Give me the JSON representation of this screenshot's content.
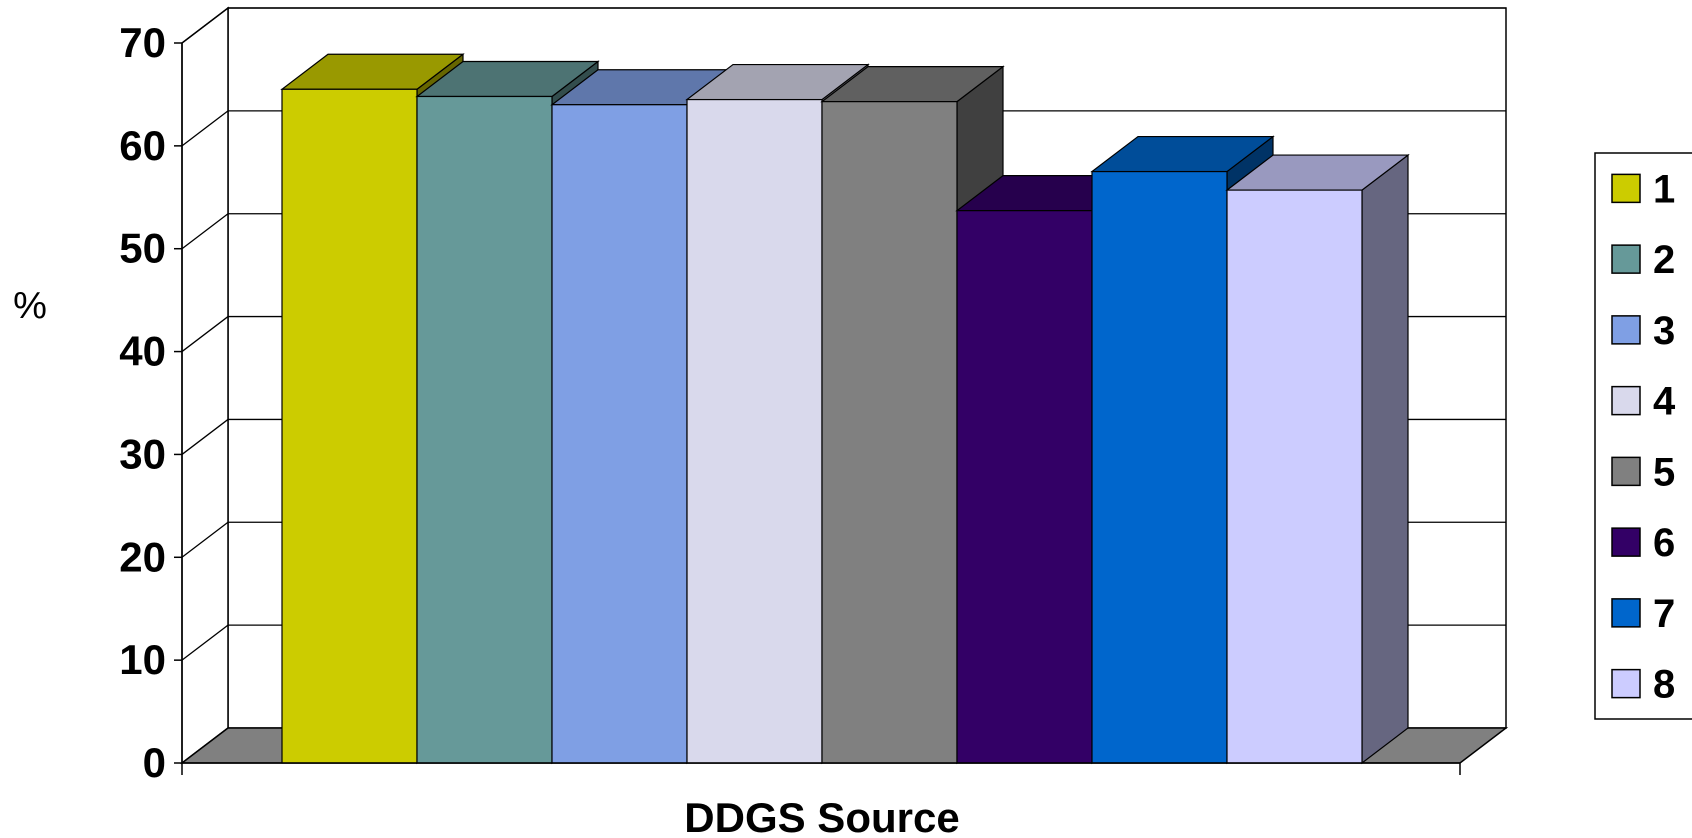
{
  "chart_data": {
    "type": "bar",
    "style": "3d-clustered-column",
    "xlabel": "DDGS Source",
    "ylabel": "%",
    "ylim": [
      0,
      70
    ],
    "yticks": [
      0,
      10,
      20,
      30,
      40,
      50,
      60,
      70
    ],
    "grid": true,
    "legend_position": "right",
    "series": [
      {
        "name": "1",
        "value": 65.5,
        "color": "#cccc00"
      },
      {
        "name": "2",
        "value": 64.8,
        "color": "#669999"
      },
      {
        "name": "3",
        "value": 64.0,
        "color": "#7f9fe4"
      },
      {
        "name": "4",
        "value": 64.5,
        "color": "#d9d9ec"
      },
      {
        "name": "5",
        "value": 64.3,
        "color": "#808080"
      },
      {
        "name": "6",
        "value": 53.7,
        "color": "#330066"
      },
      {
        "name": "7",
        "value": 57.5,
        "color": "#0066cc"
      },
      {
        "name": "8",
        "value": 55.7,
        "color": "#ccccff"
      }
    ]
  }
}
